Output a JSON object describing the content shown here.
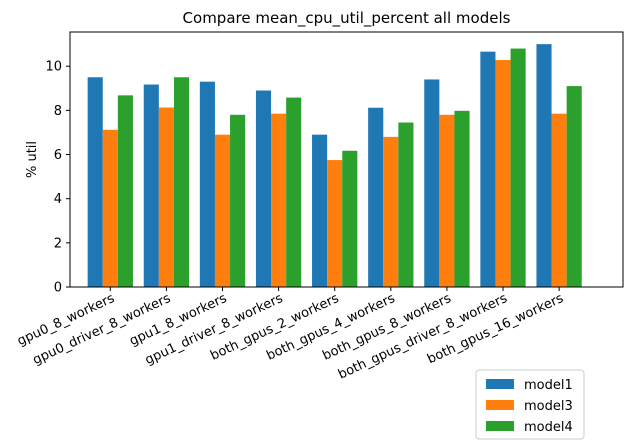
{
  "chart_data": {
    "type": "bar",
    "title": "Compare mean_cpu_util_percent all models",
    "xlabel": "",
    "ylabel": "% util",
    "ylim": [
      0,
      11.55
    ],
    "yticks": [
      0,
      2,
      4,
      6,
      8,
      10
    ],
    "grid": false,
    "legend_position": "bottom-right",
    "categories": [
      "gpu0_8_workers",
      "gpu0_driver_8_workers",
      "gpu1_8_workers",
      "gpu1_driver_8_workers",
      "both_gpus_2_workers",
      "both_gpus_4_workers",
      "both_gpus_8_workers",
      "both_gpus_driver_8_workers",
      "both_gpus_16_workers"
    ],
    "series": [
      {
        "name": "model1",
        "color": "#1f77b4",
        "values": [
          9.5,
          9.17,
          9.3,
          8.9,
          6.9,
          8.12,
          9.4,
          10.66,
          11.0
        ]
      },
      {
        "name": "model3",
        "color": "#ff7f0e",
        "values": [
          7.12,
          8.13,
          6.9,
          7.85,
          5.75,
          6.8,
          7.8,
          10.28,
          7.85
        ]
      },
      {
        "name": "model4",
        "color": "#2ca02c",
        "values": [
          8.68,
          9.5,
          7.8,
          8.58,
          6.17,
          7.45,
          7.98,
          10.8,
          9.1
        ]
      }
    ]
  }
}
